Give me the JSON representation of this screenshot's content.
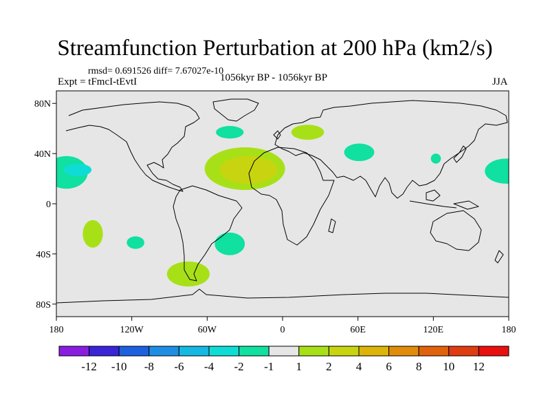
{
  "chart_data": {
    "type": "heatmap",
    "title": "Streamfunction Perturbation at 200 hPa (km2/s)",
    "stats": "rmsd= 0.691526  diff= 7.67027e-10",
    "experiment": "Expt = tFmcI-tEvtI",
    "period": "1056kyr BP - 1056kyr BP",
    "season": "JJA",
    "lon_range": [
      -180,
      180
    ],
    "lat_range": [
      -90,
      90
    ],
    "x_ticks": [
      {
        "value": -180,
        "label": "180"
      },
      {
        "value": -120,
        "label": "120W"
      },
      {
        "value": -60,
        "label": "60W"
      },
      {
        "value": 0,
        "label": "0"
      },
      {
        "value": 60,
        "label": "60E"
      },
      {
        "value": 120,
        "label": "120E"
      },
      {
        "value": 180,
        "label": "180"
      }
    ],
    "y_ticks": [
      {
        "value": 80,
        "label": "80N"
      },
      {
        "value": 40,
        "label": "40N"
      },
      {
        "value": 0,
        "label": "0"
      },
      {
        "value": -40,
        "label": "40S"
      },
      {
        "value": -80,
        "label": "80S"
      }
    ],
    "colorbar": {
      "colors": [
        "#8a1ee0",
        "#3a24d8",
        "#1c60e0",
        "#1e8ee4",
        "#14b8e2",
        "#10dcd6",
        "#10e0a0",
        "#e6e6e6",
        "#a8e018",
        "#c8d410",
        "#dcb40a",
        "#e08c0a",
        "#e0620c",
        "#e03c12",
        "#e81010"
      ],
      "labels": [
        "-12",
        "-10",
        "-8",
        "-6",
        "-4",
        "-2",
        "-1",
        "1",
        "2",
        "4",
        "6",
        "8",
        "10",
        "12"
      ]
    },
    "anomalies": [
      {
        "name": "north-atlantic-positive",
        "lon": -30,
        "lat": 28,
        "rlon": 32,
        "rlat": 17,
        "level": 2
      },
      {
        "name": "north-atlantic-core",
        "lon": -27,
        "lat": 27,
        "rlon": 23,
        "rlat": 11,
        "level": 4
      },
      {
        "name": "europe-positive",
        "lon": 20,
        "lat": 57,
        "rlon": 13,
        "rlat": 6,
        "level": 2
      },
      {
        "name": "north-atlantic-negative",
        "lon": -42,
        "lat": 57,
        "rlon": 11,
        "rlat": 5,
        "level": -1
      },
      {
        "name": "central-asia-negative",
        "lon": 61,
        "lat": 41,
        "rlon": 12,
        "rlat": 7,
        "level": -1
      },
      {
        "name": "east-asia-negative",
        "lon": 122,
        "lat": 36,
        "rlon": 4,
        "rlat": 4,
        "level": -1
      },
      {
        "name": "west-pacific-negative",
        "lon": 178,
        "lat": 26,
        "rlon": 17,
        "rlat": 10,
        "level": -1
      },
      {
        "name": "east-pacific-negative",
        "lon": -172,
        "lat": 25,
        "rlon": 17,
        "rlat": 13,
        "level": -1
      },
      {
        "name": "east-pacific-core",
        "lon": -163,
        "lat": 27,
        "rlon": 11,
        "rlat": 5,
        "level": -2
      },
      {
        "name": "south-pacific-positive",
        "lon": -151,
        "lat": -24,
        "rlon": 8,
        "rlat": 11,
        "level": 2
      },
      {
        "name": "south-pacific-negative",
        "lon": -117,
        "lat": -31,
        "rlon": 7,
        "rlat": 5,
        "level": -1
      },
      {
        "name": "south-america-negative",
        "lon": -42,
        "lat": -32,
        "rlon": 12,
        "rlat": 9,
        "level": -1
      },
      {
        "name": "southern-ocean-positive",
        "lon": -75,
        "lat": -56,
        "rlon": 17,
        "rlat": 10,
        "level": 2
      }
    ]
  }
}
